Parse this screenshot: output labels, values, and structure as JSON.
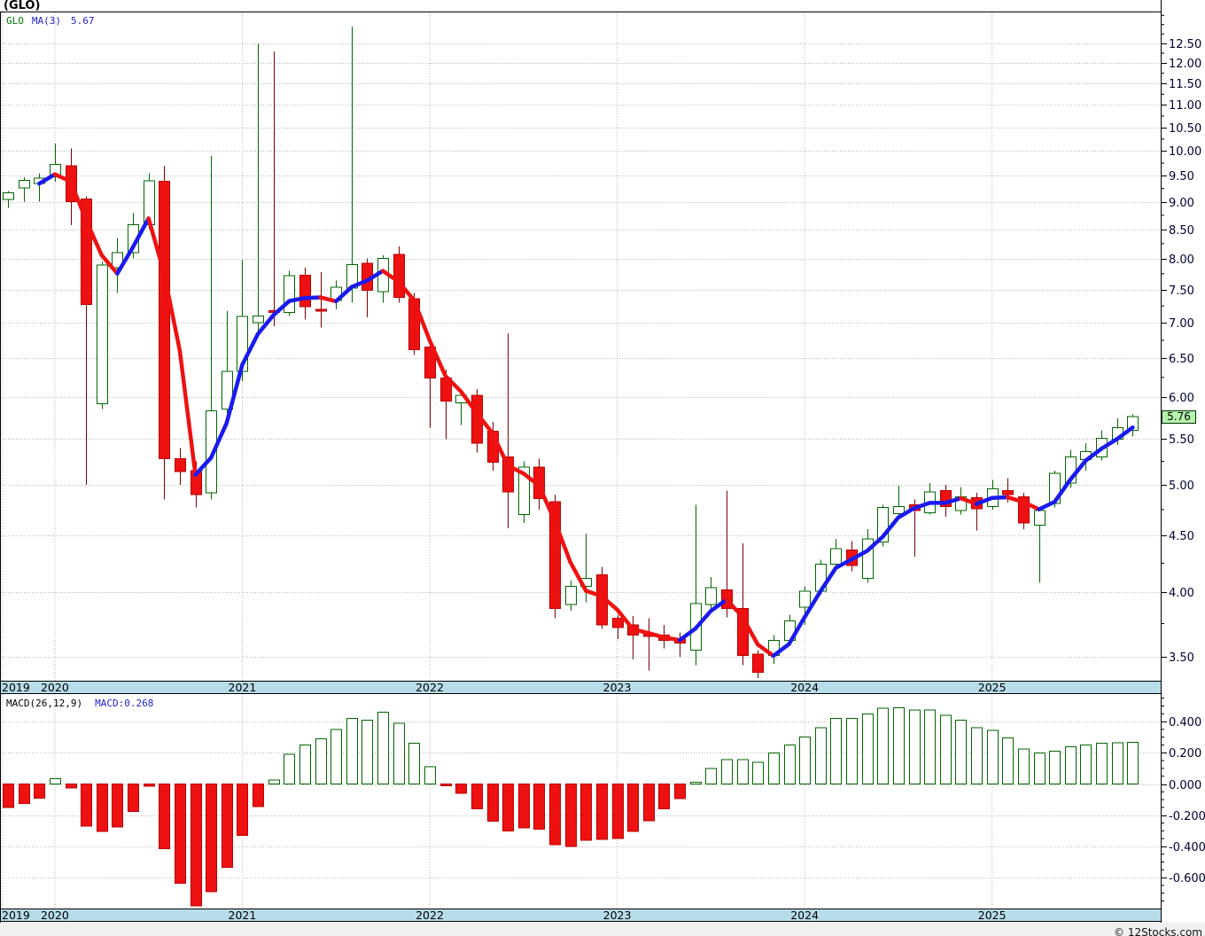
{
  "title": "(GLO)",
  "legend": {
    "symbol": "GLO",
    "ma": "MA(3)",
    "ma_value": "5.67"
  },
  "macd_legend": {
    "name": "MACD(26,12,9)",
    "current": "MACD:0.268"
  },
  "last_price": "5.76",
  "footer_text": "© 12Stocks.com",
  "colors": {
    "grid": "#b6b6b6",
    "axis_text": "#000033",
    "tick": "#000000",
    "up_stroke": "#006600",
    "up_fill": "#ffffff",
    "down_fill": "#ee1111",
    "down_stroke": "#bb0000",
    "down_wick": "#7a0000",
    "ma_up": "#1a1aee",
    "ma_down": "#ee1111",
    "strip_bg": "#b7dcea",
    "price_box_bg": "#b4f2ae",
    "price_box_border": "#003300",
    "legend_green": "#007700",
    "legend_blue": "#2222cc"
  },
  "axis": {
    "price_tick_labels": [
      "12.50",
      "12.00",
      "11.50",
      "11.00",
      "10.50",
      "10.00",
      "9.50",
      "9.00",
      "8.50",
      "8.00",
      "7.50",
      "7.00",
      "6.50",
      "6.00",
      "5.50",
      "5.00",
      "4.50",
      "4.00",
      "3.50"
    ],
    "macd_tick_labels": [
      "0.400",
      "0.200",
      "0.000",
      "-0.200",
      "-0.400",
      "-0.600"
    ],
    "years": [
      "2019",
      "2020",
      "2021",
      "2022",
      "2023",
      "2024",
      "2025"
    ]
  },
  "chart_data": [
    {
      "type": "candlestick",
      "symbol": "GLO",
      "interval": "monthly",
      "y_scale": "log",
      "ylim": [
        3.33,
        13.33
      ],
      "grid": true,
      "last_close": 5.76,
      "overlay": {
        "name": "MA(3)",
        "period": 3,
        "current_value": 5.67
      },
      "months": [
        "2019-10",
        "2019-11",
        "2019-12",
        "2020-01",
        "2020-02",
        "2020-03",
        "2020-04",
        "2020-05",
        "2020-06",
        "2020-07",
        "2020-08",
        "2020-09",
        "2020-10",
        "2020-11",
        "2020-12",
        "2021-01",
        "2021-02",
        "2021-03",
        "2021-04",
        "2021-05",
        "2021-06",
        "2021-07",
        "2021-08",
        "2021-09",
        "2021-10",
        "2021-11",
        "2021-12",
        "2022-01",
        "2022-02",
        "2022-03",
        "2022-04",
        "2022-05",
        "2022-06",
        "2022-07",
        "2022-08",
        "2022-09",
        "2022-10",
        "2022-11",
        "2022-12",
        "2023-01",
        "2023-02",
        "2023-03",
        "2023-04",
        "2023-05",
        "2023-06",
        "2023-07",
        "2023-08",
        "2023-09",
        "2023-10",
        "2023-11",
        "2023-12",
        "2024-01",
        "2024-02",
        "2024-03",
        "2024-04",
        "2024-05",
        "2024-06",
        "2024-07",
        "2024-08",
        "2024-09",
        "2024-10",
        "2024-11",
        "2024-12",
        "2025-01",
        "2025-02",
        "2025-03",
        "2025-04",
        "2025-05",
        "2025-06",
        "2025-07",
        "2025-08",
        "2025-09",
        "2025-10"
      ],
      "ohlc": [
        [
          9.04,
          9.2,
          8.89,
          9.17
        ],
        [
          9.26,
          9.47,
          9.0,
          9.41
        ],
        [
          9.35,
          9.55,
          9.0,
          9.45
        ],
        [
          9.48,
          10.15,
          9.38,
          9.72
        ],
        [
          9.7,
          10.05,
          8.57,
          9.0
        ],
        [
          9.05,
          9.1,
          5.0,
          7.27
        ],
        [
          5.92,
          7.95,
          5.85,
          7.89
        ],
        [
          7.85,
          8.35,
          7.45,
          8.1
        ],
        [
          8.1,
          8.8,
          8.0,
          8.58
        ],
        [
          8.58,
          9.55,
          8.5,
          9.4
        ],
        [
          9.39,
          9.7,
          4.85,
          5.28
        ],
        [
          5.28,
          5.4,
          5.0,
          5.14
        ],
        [
          5.15,
          5.25,
          4.77,
          4.9
        ],
        [
          4.92,
          9.9,
          4.85,
          5.83
        ],
        [
          5.85,
          7.17,
          5.8,
          6.33
        ],
        [
          6.33,
          7.97,
          6.2,
          7.09
        ],
        [
          7.0,
          12.5,
          6.85,
          7.1
        ],
        [
          7.18,
          12.3,
          6.95,
          7.15
        ],
        [
          7.15,
          7.8,
          7.1,
          7.72
        ],
        [
          7.73,
          7.85,
          7.05,
          7.24
        ],
        [
          7.2,
          7.78,
          6.93,
          7.18
        ],
        [
          7.33,
          7.64,
          7.2,
          7.54
        ],
        [
          7.52,
          12.95,
          7.3,
          7.9
        ],
        [
          7.92,
          8.0,
          7.08,
          7.49
        ],
        [
          7.47,
          8.05,
          7.3,
          8.0
        ],
        [
          8.07,
          8.2,
          7.3,
          7.38
        ],
        [
          7.36,
          7.45,
          6.55,
          6.62
        ],
        [
          6.66,
          6.75,
          5.63,
          6.24
        ],
        [
          6.24,
          6.35,
          5.5,
          5.95
        ],
        [
          5.93,
          6.1,
          5.66,
          6.02
        ],
        [
          6.02,
          6.1,
          5.35,
          5.45
        ],
        [
          5.59,
          5.7,
          5.15,
          5.24
        ],
        [
          5.3,
          6.85,
          4.57,
          4.93
        ],
        [
          4.7,
          5.25,
          4.62,
          5.19
        ],
        [
          5.19,
          5.28,
          4.75,
          4.86
        ],
        [
          4.83,
          4.9,
          3.79,
          3.87
        ],
        [
          3.9,
          4.1,
          3.85,
          4.05
        ],
        [
          4.05,
          4.52,
          3.92,
          4.12
        ],
        [
          4.15,
          4.22,
          3.71,
          3.74
        ],
        [
          3.79,
          3.82,
          3.63,
          3.72
        ],
        [
          3.74,
          3.81,
          3.48,
          3.66
        ],
        [
          3.67,
          3.79,
          3.4,
          3.65
        ],
        [
          3.66,
          3.74,
          3.56,
          3.62
        ],
        [
          3.63,
          3.68,
          3.5,
          3.6
        ],
        [
          3.55,
          4.8,
          3.44,
          3.91
        ],
        [
          3.9,
          4.13,
          3.85,
          4.04
        ],
        [
          4.02,
          4.94,
          3.8,
          3.87
        ],
        [
          3.87,
          4.43,
          3.44,
          3.51
        ],
        [
          3.52,
          3.55,
          3.35,
          3.39
        ],
        [
          3.51,
          3.66,
          3.45,
          3.62
        ],
        [
          3.62,
          3.82,
          3.58,
          3.77
        ],
        [
          3.88,
          4.05,
          3.74,
          4.01
        ],
        [
          4.01,
          4.28,
          3.98,
          4.24
        ],
        [
          4.24,
          4.47,
          4.2,
          4.38
        ],
        [
          4.37,
          4.45,
          4.18,
          4.23
        ],
        [
          4.12,
          4.56,
          4.08,
          4.47
        ],
        [
          4.44,
          4.8,
          4.4,
          4.77
        ],
        [
          4.71,
          4.99,
          4.68,
          4.78
        ],
        [
          4.8,
          4.85,
          4.31,
          4.74
        ],
        [
          4.72,
          5.02,
          4.7,
          4.93
        ],
        [
          4.94,
          5.0,
          4.68,
          4.78
        ],
        [
          4.74,
          4.98,
          4.7,
          4.88
        ],
        [
          4.87,
          4.92,
          4.55,
          4.76
        ],
        [
          4.78,
          5.05,
          4.75,
          4.96
        ],
        [
          4.94,
          5.07,
          4.82,
          4.9
        ],
        [
          4.88,
          4.92,
          4.56,
          4.62
        ],
        [
          4.6,
          4.77,
          4.08,
          4.74
        ],
        [
          4.81,
          5.15,
          4.77,
          5.12
        ],
        [
          5.02,
          5.38,
          4.97,
          5.3
        ],
        [
          5.27,
          5.45,
          5.15,
          5.36
        ],
        [
          5.3,
          5.6,
          5.26,
          5.51
        ],
        [
          5.5,
          5.74,
          5.43,
          5.63
        ],
        [
          5.6,
          5.79,
          5.53,
          5.76
        ]
      ]
    },
    {
      "type": "bar",
      "name": "MACD histogram",
      "params": "26,12,9",
      "current": 0.268,
      "ylim": [
        -0.78,
        0.56
      ],
      "pos_style": "hollow-green",
      "neg_style": "filled-red",
      "values": [
        -0.15,
        -0.125,
        -0.09,
        0.035,
        -0.025,
        -0.27,
        -0.305,
        -0.275,
        -0.175,
        -0.015,
        -0.415,
        -0.635,
        -0.78,
        -0.69,
        -0.535,
        -0.33,
        -0.145,
        0.025,
        0.19,
        0.25,
        0.29,
        0.35,
        0.42,
        0.41,
        0.46,
        0.39,
        0.26,
        0.11,
        -0.01,
        -0.06,
        -0.16,
        -0.24,
        -0.3,
        -0.28,
        -0.29,
        -0.39,
        -0.4,
        -0.36,
        -0.355,
        -0.35,
        -0.305,
        -0.235,
        -0.16,
        -0.095,
        0.005,
        0.1,
        0.155,
        0.155,
        0.14,
        0.2,
        0.25,
        0.3,
        0.36,
        0.42,
        0.42,
        0.45,
        0.485,
        0.49,
        0.475,
        0.475,
        0.44,
        0.41,
        0.36,
        0.345,
        0.295,
        0.225,
        0.2,
        0.21,
        0.24,
        0.25,
        0.26,
        0.265,
        0.268
      ]
    }
  ]
}
